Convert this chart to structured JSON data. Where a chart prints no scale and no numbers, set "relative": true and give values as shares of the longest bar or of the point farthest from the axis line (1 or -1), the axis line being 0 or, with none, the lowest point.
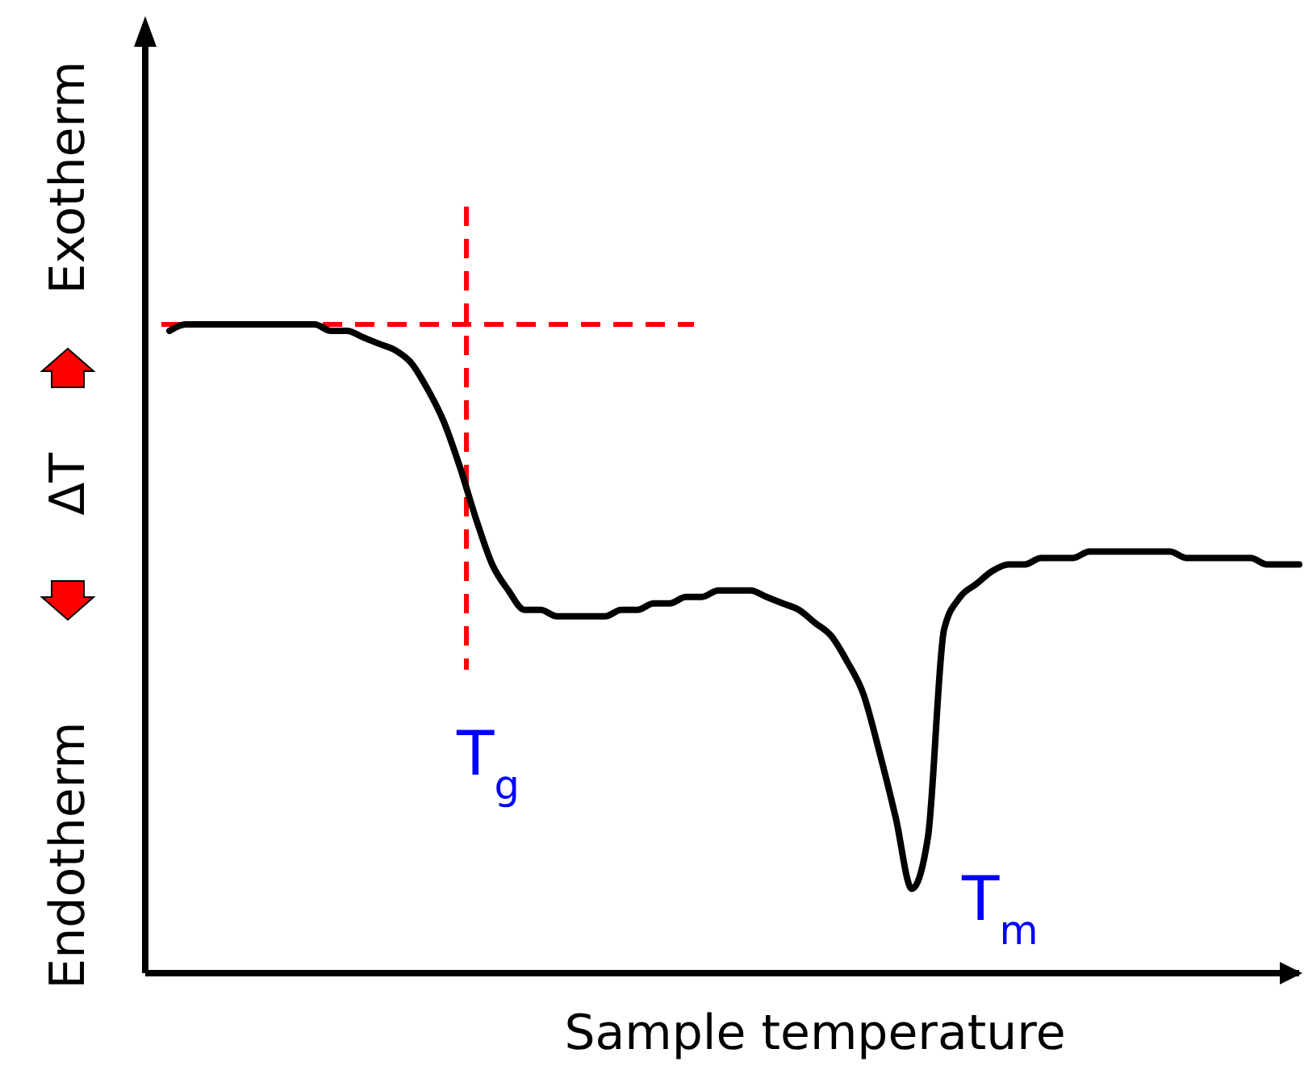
{
  "chart_data": {
    "type": "line",
    "relative": true,
    "xlabel": "Sample temperature",
    "ylabel": "Endotherm ΔT Exotherm",
    "categories": [
      null,
      null,
      null,
      null,
      null,
      null,
      null,
      null,
      null,
      null,
      null,
      null,
      null,
      null,
      null,
      null,
      null,
      null,
      null,
      null,
      null,
      null,
      null,
      null,
      null,
      null,
      null,
      null,
      null,
      null,
      null,
      null,
      null,
      null,
      null,
      null,
      null,
      null,
      null,
      null,
      null,
      null,
      null,
      null,
      null,
      null,
      null,
      null,
      null,
      null,
      null,
      null,
      null,
      null,
      null,
      null,
      null,
      null,
      null,
      null,
      null,
      null,
      null,
      null,
      null,
      null,
      null,
      null,
      null,
      null,
      null
    ],
    "series": [
      {
        "color": "#000000",
        "values": [
          0.99,
          1.0,
          1.0,
          1,
          1,
          1,
          1,
          1,
          1,
          1.0,
          0.99,
          0.99,
          0.98,
          0.97,
          0.96,
          0.94,
          0.9,
          0.85,
          0.78,
          0.7,
          0.63,
          0.59,
          0.56,
          0.56,
          0.55,
          0.55,
          0.55,
          0.55,
          0.56,
          0.56,
          0.57,
          0.57,
          0.58,
          0.58,
          0.59,
          0.59,
          0.59,
          0.58,
          0.57,
          0.56,
          0.54,
          0.52,
          0.48,
          0.43,
          0.34,
          0.24,
          0.13,
          0.21,
          0.53,
          0.58,
          0.6,
          0.62,
          0.63,
          0.63,
          0.64,
          0.64,
          0.64,
          0.65,
          0.65,
          0.65,
          0.65,
          0.65,
          0.65,
          0.64,
          0.64,
          0.64,
          0.64,
          0.64,
          0.63,
          0.63,
          0.63
        ]
      }
    ],
    "ref_lines": [
      {
        "axis": "y",
        "value": 1,
        "color": "#ff0000",
        "line_style": "dashed"
      }
    ],
    "annotations": [
      "T$_{g}$",
      "T$_{m}$"
    ]
  }
}
